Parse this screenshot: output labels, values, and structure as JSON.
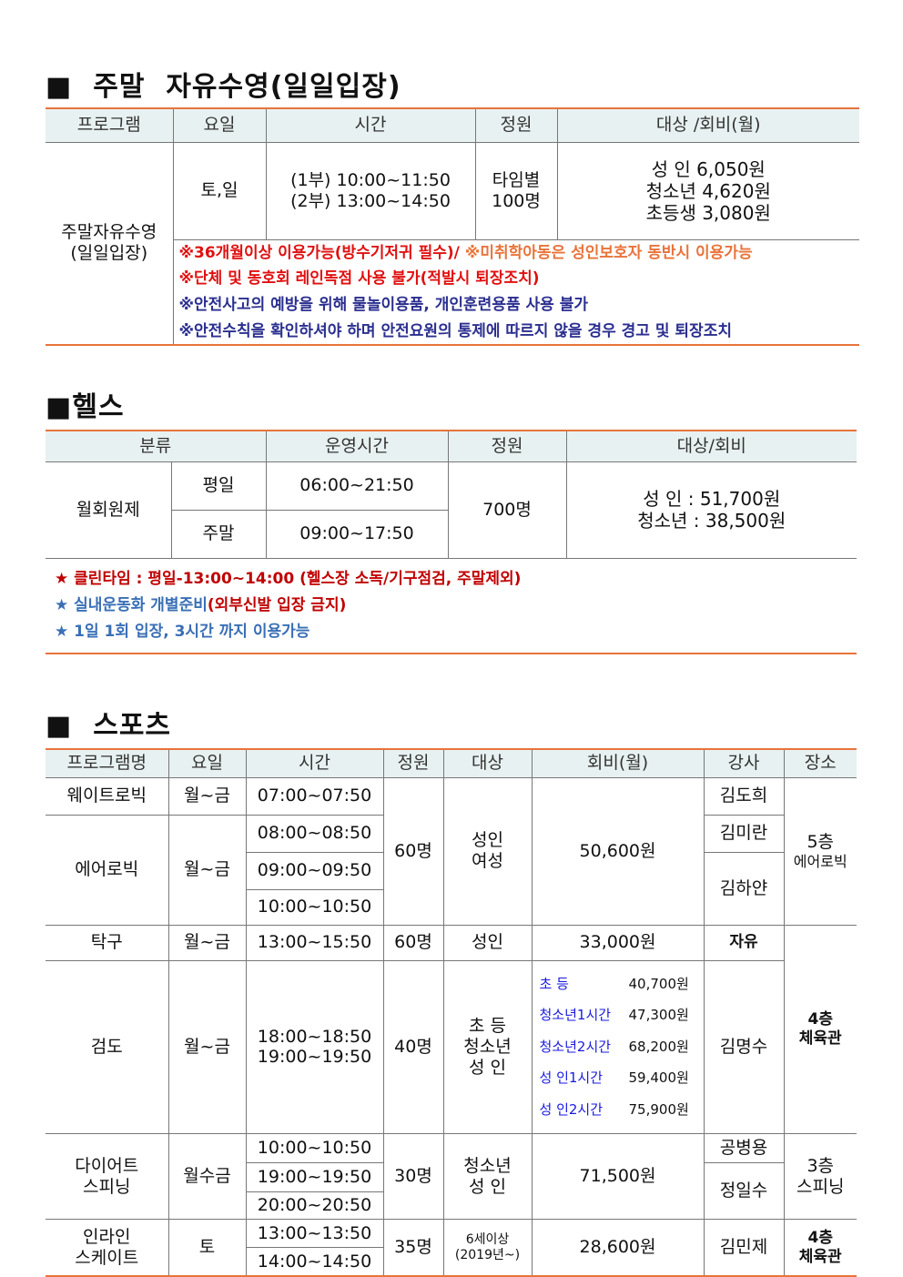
{
  "swim": {
    "title": "■  주말  자유수영(일일입장)",
    "headers": [
      "프로그램",
      "요일",
      "시간",
      "정원",
      "대상 /회비(월)"
    ],
    "program": "주말자유수영\n(일일입장)",
    "days": "토,일",
    "times": "(1부) 10:00~11:50\n(2부) 13:00~14:50",
    "capacity": "타임별\n100명",
    "fees": "성   인 6,050원\n청소년 4,620원\n초등생 3,080원",
    "notes": [
      {
        "a": "※36개월이상 이용가능(방수기저귀 필수)/",
        "b": "※미취학아동은 성인보호자 동반시 이용가능"
      },
      "※단체 및 동호회 레인독점 사용 불가(적발시 퇴장조치)",
      "※안전사고의 예방을 위해 물놀이용품, 개인훈련용품 사용 불가",
      "※안전수칙을 확인하셔야 하며 안전요원의 통제에 따르지 않을 경우 경고 및 퇴장조치"
    ]
  },
  "health": {
    "title": "■헬스",
    "headers": [
      "분류",
      "운영시간",
      "정원",
      "대상/회비"
    ],
    "type": "월회원제",
    "rows": [
      {
        "day": "평일",
        "time": "06:00~21:50"
      },
      {
        "day": "주말",
        "time": "09:00~17:50"
      }
    ],
    "capacity": "700명",
    "fees": "성   인 : 51,700원\n청소년 : 38,500원",
    "notes": [
      {
        "star": "★",
        "text": "클린타임 : 평일-13:00~14:00 (헬스장 소독/기구점검, 주말제외)"
      },
      {
        "star": "★",
        "a": "실내운동화 개별준비",
        "b": "(외부신발 입장 금지)"
      },
      {
        "star": "★",
        "text": "1일 1회 입장, 3시간 까지 이용가능"
      }
    ]
  },
  "sports": {
    "title": "■  스포츠",
    "headers": [
      "프로그램명",
      "요일",
      "시간",
      "정원",
      "대상",
      "회비(월)",
      "강사",
      "장소"
    ],
    "weight": {
      "name": "웨이트로빅",
      "day": "월~금",
      "time": "07:00~07:50",
      "cap": "60명",
      "target": "성인\n여성",
      "fee": "50,600원",
      "teacher": "김도희",
      "place": "5층",
      "place2": "에어로빅"
    },
    "aerobic": {
      "name": "에어로빅",
      "day": "월~금",
      "times": [
        "08:00~08:50",
        "09:00~09:50",
        "10:00~10:50"
      ],
      "teachers": [
        "김미란",
        "김하얀"
      ]
    },
    "tabletennis": {
      "name": "탁구",
      "day": "월~금",
      "time": "13:00~15:50",
      "cap": "60명",
      "target": "성인",
      "fee": "33,000원",
      "teacher": "자유",
      "place": "4층\n체육관"
    },
    "kendo": {
      "name": "검도",
      "day": "월~금",
      "time": "18:00~18:50\n19:00~19:50",
      "cap": "40명",
      "target": "초    등\n청소년\n성    인",
      "fees": [
        {
          "l": "초      등",
          "v": "40,700원"
        },
        {
          "l": "청소년1시간",
          "v": "47,300원"
        },
        {
          "l": "청소년2시간",
          "v": "68,200원"
        },
        {
          "l": "성    인1시간",
          "v": "59,400원"
        },
        {
          "l": "성    인2시간",
          "v": "75,900원"
        }
      ],
      "teacher": "김명수"
    },
    "spinning": {
      "name": "다이어트\n스피닝",
      "day": "월수금",
      "times": [
        "10:00~10:50",
        "19:00~19:50",
        "20:00~20:50"
      ],
      "cap": "30명",
      "target": "청소년\n성    인",
      "fee": "71,500원",
      "teachers": [
        "공병용",
        "정일수"
      ],
      "place": "3층\n스피닝"
    },
    "inline": {
      "name": "인라인\n스케이트",
      "day": "토",
      "times": [
        "13:00~13:50",
        "14:00~14:50"
      ],
      "cap": "35명",
      "target": "6세이상\n(2019년~)",
      "fee": "28,600원",
      "teacher": "김민제",
      "place": "4층\n체육관"
    }
  }
}
